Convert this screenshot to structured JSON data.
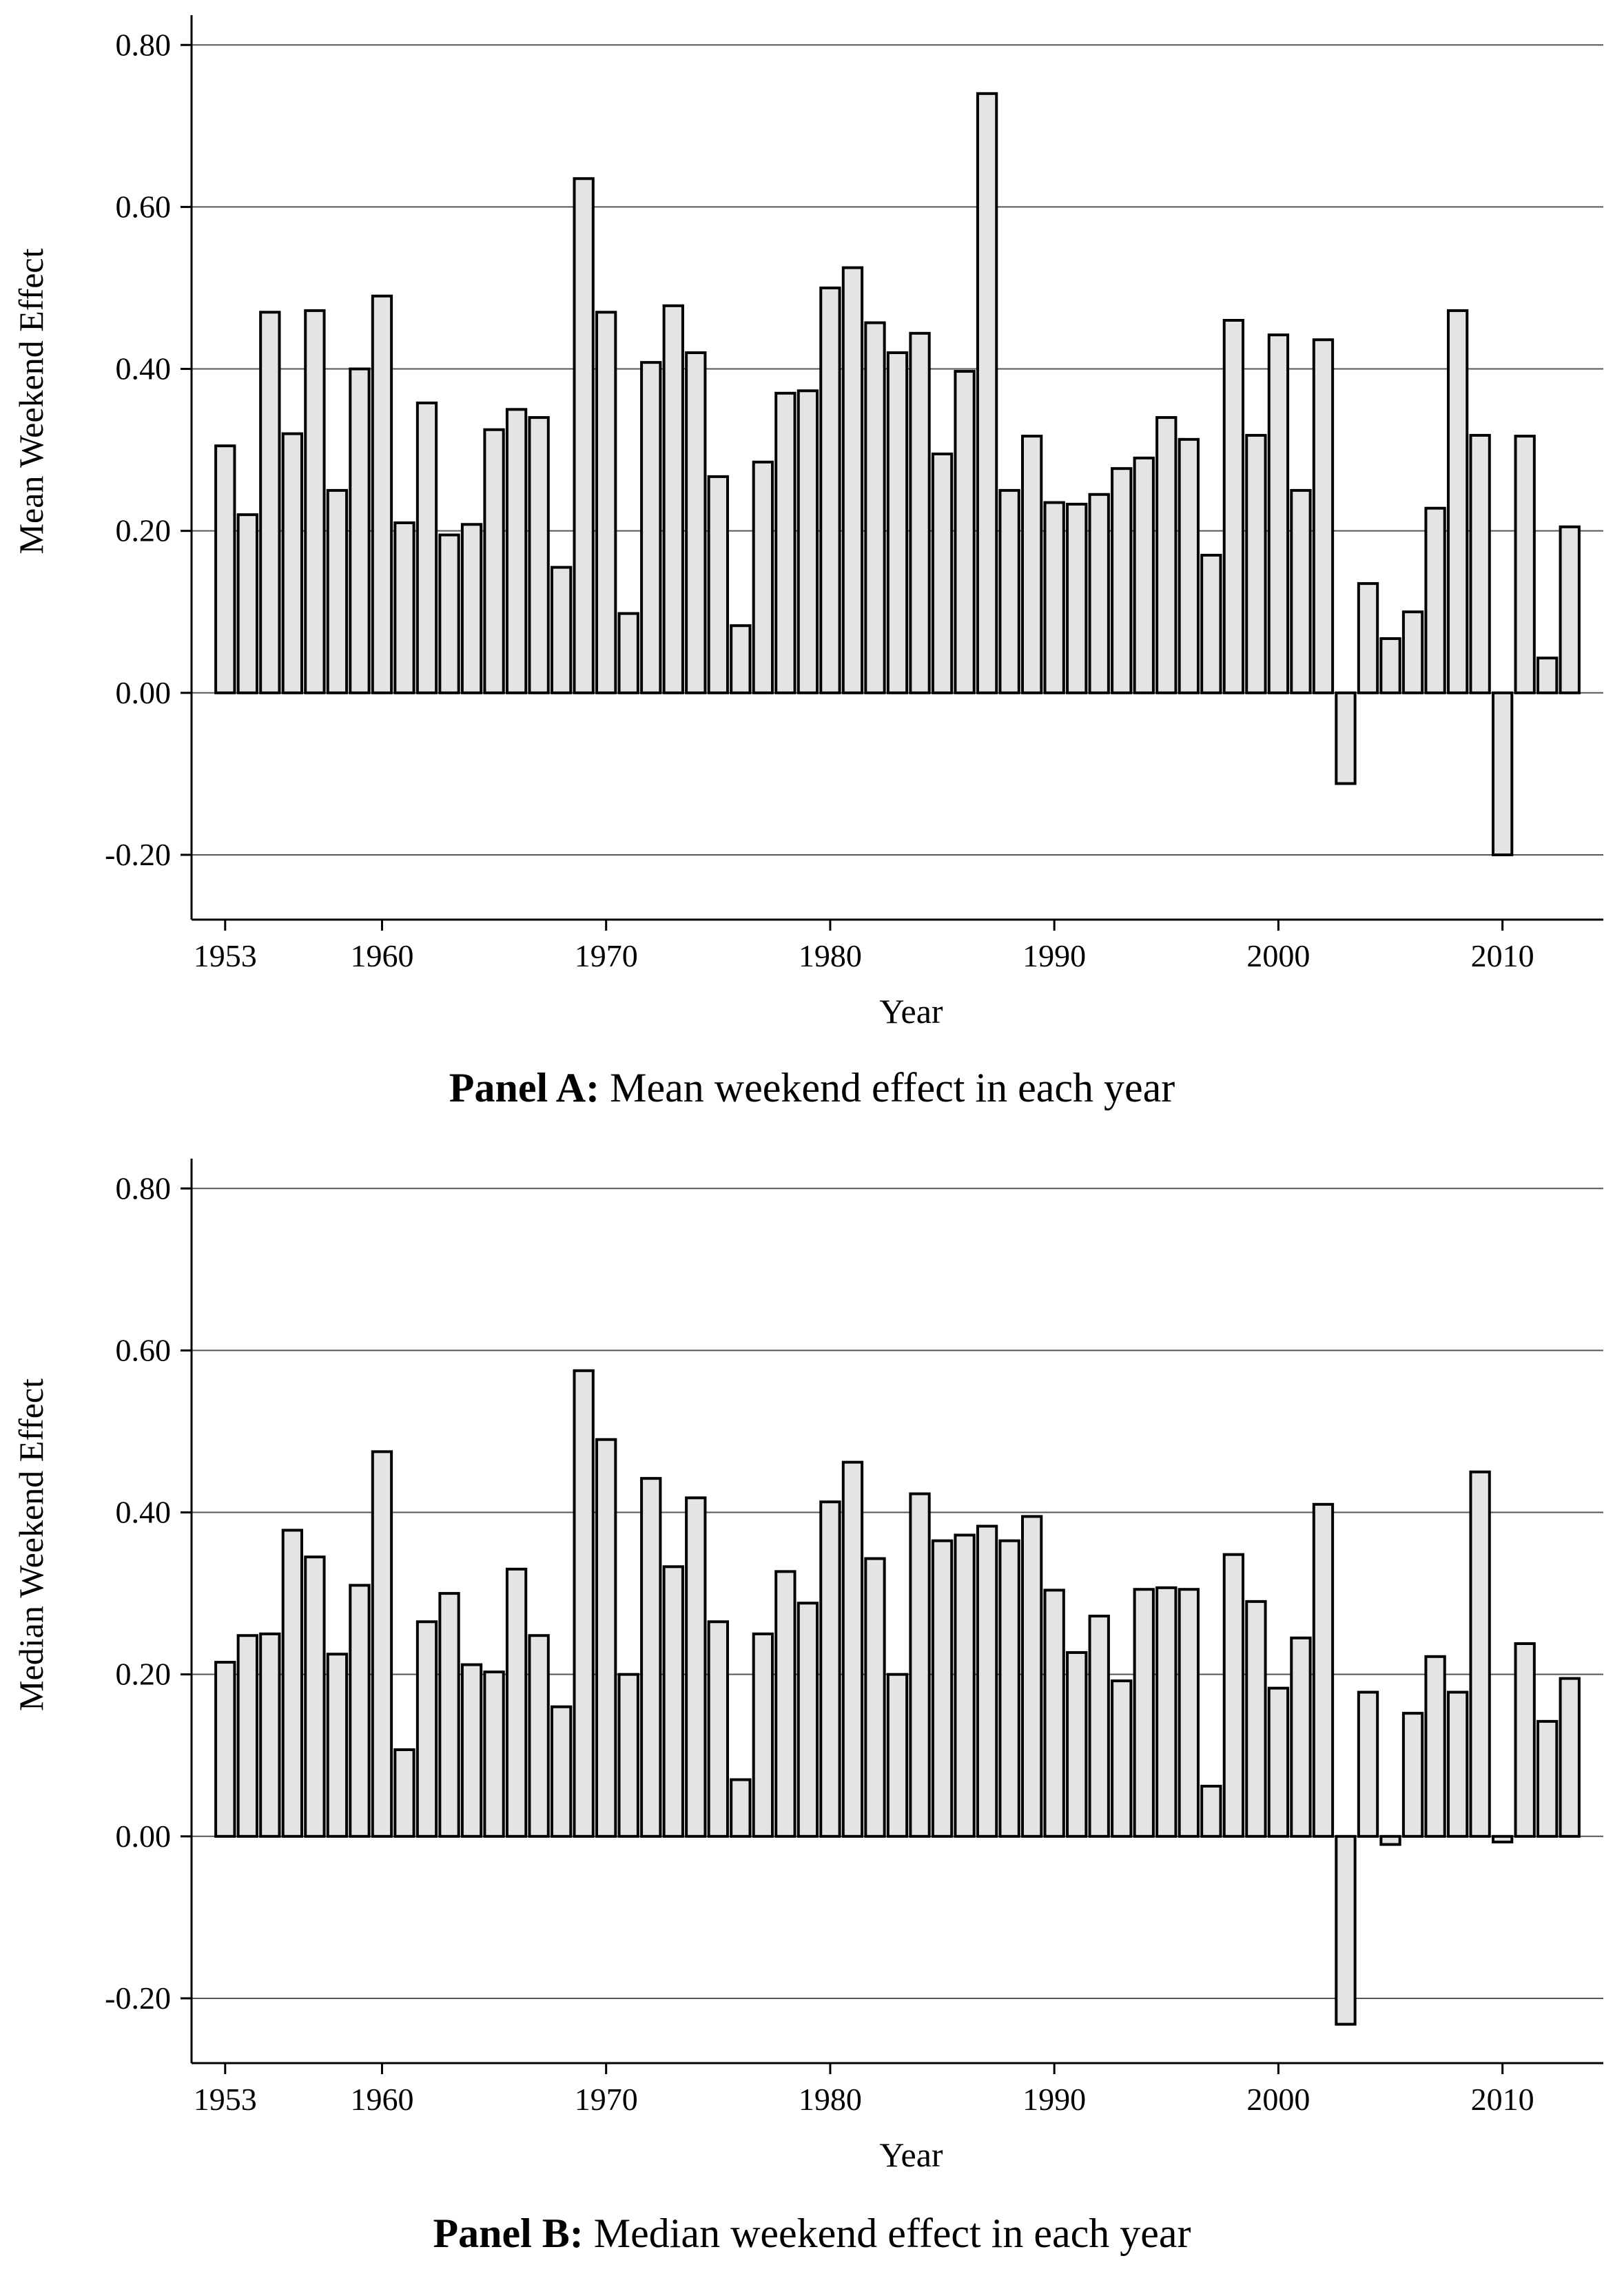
{
  "chart_data": [
    {
      "type": "bar",
      "caption_bold": "Panel A:",
      "caption_rest": " Mean weekend effect in each year",
      "xlabel": "Year",
      "ylabel": "Mean Weekend Effect",
      "xlim": [
        1951.5,
        2014.5
      ],
      "ylim": [
        -0.28,
        0.83
      ],
      "yticks": [
        "-0.20",
        "0.00",
        "0.20",
        "0.40",
        "0.60",
        "0.80"
      ],
      "xticks": [
        "1953",
        "1960",
        "1970",
        "1980",
        "1990",
        "2000",
        "2010"
      ],
      "grid": "horizontal",
      "bar_fill": "#e4e4e4",
      "bar_stroke": "#000000",
      "x": [
        1953,
        1954,
        1955,
        1956,
        1957,
        1958,
        1959,
        1960,
        1961,
        1962,
        1963,
        1964,
        1965,
        1966,
        1967,
        1968,
        1969,
        1970,
        1971,
        1972,
        1973,
        1974,
        1975,
        1976,
        1977,
        1978,
        1979,
        1980,
        1981,
        1982,
        1983,
        1984,
        1985,
        1986,
        1987,
        1988,
        1989,
        1990,
        1991,
        1992,
        1993,
        1994,
        1995,
        1996,
        1997,
        1998,
        1999,
        2000,
        2001,
        2002,
        2003,
        2004,
        2005,
        2006,
        2007,
        2008,
        2009,
        2010,
        2011,
        2012,
        2013
      ],
      "values": [
        0.305,
        0.22,
        0.47,
        0.32,
        0.472,
        0.25,
        0.4,
        0.49,
        0.21,
        0.358,
        0.195,
        0.208,
        0.325,
        0.35,
        0.34,
        0.155,
        0.635,
        0.47,
        0.098,
        0.408,
        0.478,
        0.42,
        0.267,
        0.083,
        0.285,
        0.37,
        0.373,
        0.5,
        0.525,
        0.457,
        0.42,
        0.444,
        0.295,
        0.397,
        0.74,
        0.25,
        0.317,
        0.235,
        0.233,
        0.245,
        0.277,
        0.29,
        0.34,
        0.313,
        0.17,
        0.46,
        0.318,
        0.442,
        0.25,
        0.436,
        -0.112,
        0.135,
        0.067,
        0.1,
        0.228,
        0.472,
        0.318,
        -0.2,
        0.317,
        0.043,
        0.205
      ]
    },
    {
      "type": "bar",
      "caption_bold": "Panel B:",
      "caption_rest": " Median weekend effect in each year",
      "xlabel": "Year",
      "ylabel": "Median Weekend Effect",
      "xlim": [
        1951.5,
        2014.5
      ],
      "ylim": [
        -0.28,
        0.83
      ],
      "yticks": [
        "-0.20",
        "0.00",
        "0.20",
        "0.40",
        "0.60",
        "0.80"
      ],
      "xticks": [
        "1953",
        "1960",
        "1970",
        "1980",
        "1990",
        "2000",
        "2010"
      ],
      "grid": "horizontal",
      "bar_fill": "#e4e4e4",
      "bar_stroke": "#000000",
      "x": [
        1953,
        1954,
        1955,
        1956,
        1957,
        1958,
        1959,
        1960,
        1961,
        1962,
        1963,
        1964,
        1965,
        1966,
        1967,
        1968,
        1969,
        1970,
        1971,
        1972,
        1973,
        1974,
        1975,
        1976,
        1977,
        1978,
        1979,
        1980,
        1981,
        1982,
        1983,
        1984,
        1985,
        1986,
        1987,
        1988,
        1989,
        1990,
        1991,
        1992,
        1993,
        1994,
        1995,
        1996,
        1997,
        1998,
        1999,
        2000,
        2001,
        2002,
        2003,
        2004,
        2005,
        2006,
        2007,
        2008,
        2009,
        2010,
        2011,
        2012,
        2013
      ],
      "values": [
        0.215,
        0.248,
        0.25,
        0.378,
        0.345,
        0.225,
        0.31,
        0.475,
        0.107,
        0.265,
        0.3,
        0.212,
        0.203,
        0.33,
        0.248,
        0.16,
        0.575,
        0.49,
        0.2,
        0.442,
        0.333,
        0.418,
        0.265,
        0.07,
        0.25,
        0.327,
        0.288,
        0.413,
        0.462,
        0.343,
        0.2,
        0.423,
        0.365,
        0.372,
        0.383,
        0.365,
        0.395,
        0.304,
        0.227,
        0.272,
        0.192,
        0.305,
        0.307,
        0.305,
        0.062,
        0.348,
        0.29,
        0.183,
        0.245,
        0.41,
        -0.232,
        0.178,
        -0.01,
        0.152,
        0.222,
        0.178,
        0.45,
        -0.007,
        0.238,
        0.142,
        0.195
      ]
    }
  ]
}
